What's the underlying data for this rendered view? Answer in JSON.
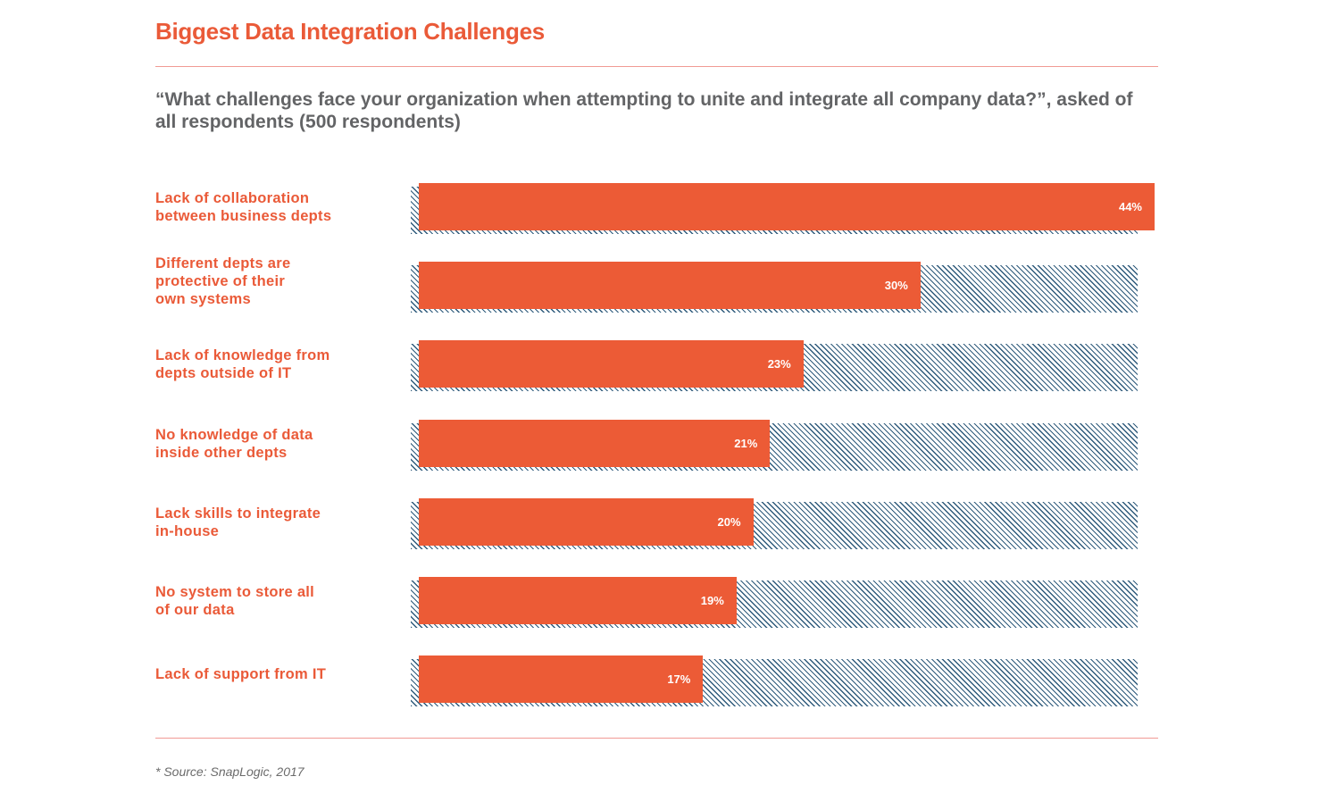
{
  "chart_data": {
    "type": "bar",
    "orientation": "horizontal",
    "title": "Biggest Data Integration Challenges",
    "subtitle": "“What challenges face your organization when attempting to unite and integrate all company data?”, asked of all respondents (500 respondents)",
    "categories": [
      "Lack of collaboration between business depts",
      "Different depts are protective of their own systems",
      "Lack of knowledge from depts outside of IT",
      "No knowledge of data inside other depts",
      "Lack skills to integrate in-house",
      "No system to store all of our data",
      "Lack of support from IT"
    ],
    "category_lines": [
      [
        "Lack of collaboration",
        "between business depts"
      ],
      [
        "Different depts are",
        "protective of their",
        "own systems"
      ],
      [
        "Lack of knowledge from",
        "depts outside of IT"
      ],
      [
        "No knowledge of data",
        "inside other depts"
      ],
      [
        "Lack skills to integrate",
        "in-house"
      ],
      [
        "No system to store all",
        "of our data"
      ],
      [
        "Lack of support from IT"
      ]
    ],
    "values": [
      44,
      30,
      23,
      21,
      20,
      19,
      17
    ],
    "value_labels": [
      "44%",
      "30%",
      "23%",
      "21%",
      "20%",
      "19%",
      "17%"
    ],
    "unit": "%",
    "xlim": [
      0,
      44
    ],
    "xlabel": "",
    "ylabel": "",
    "grid": false,
    "legend": "none",
    "colors": {
      "bar": "#ec5b36",
      "background_hatch": "#2f5b7c",
      "title": "#ea5a38",
      "subtitle": "#636466",
      "rule": "#f09a94"
    },
    "source": "* Source: SnapLogic, 2017"
  }
}
